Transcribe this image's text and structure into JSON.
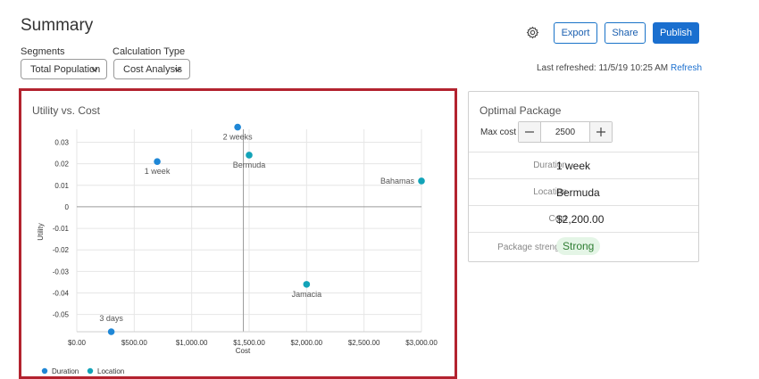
{
  "page": {
    "title": "Summary"
  },
  "filters": {
    "segments": {
      "label": "Segments",
      "value": "Total Population"
    },
    "calculation": {
      "label": "Calculation Type",
      "value": "Cost Analysis"
    }
  },
  "toolbar": {
    "settings_icon": "gear-icon",
    "export_label": "Export",
    "share_label": "Share",
    "publish_label": "Publish",
    "accent_color": "#1a6fcf"
  },
  "refresh": {
    "text": "Last refreshed: 11/5/19 10:25 AM",
    "link": "Refresh"
  },
  "chart_data": {
    "type": "scatter",
    "title": "Utility vs. Cost",
    "xlabel": "Cost",
    "ylabel": "Utility",
    "xlim": [
      0,
      3000
    ],
    "ylim": [
      -0.058,
      0.036
    ],
    "grid": true,
    "legend_position": "bottom-left",
    "x_ticks": [
      0,
      500,
      1000,
      1500,
      2000,
      2500,
      3000
    ],
    "x_tick_labels": [
      "$0.00",
      "$500.00",
      "$1,000.00",
      "$1,500.00",
      "$2,000.00",
      "$2,500.00",
      "$3,000.00"
    ],
    "y_ticks": [
      0.03,
      0.02,
      0.01,
      0,
      -0.01,
      -0.02,
      -0.03,
      -0.04,
      -0.05
    ],
    "y_tick_labels": [
      "0.03",
      "0.02",
      "0.01",
      "0",
      "-0.01",
      "-0.02",
      "-0.03",
      "-0.04",
      "-0.05"
    ],
    "reference_x": 1450,
    "series": [
      {
        "name": "Duration",
        "color": "#1f87d6",
        "points": [
          {
            "x": 700,
            "y": 0.021,
            "label": "1 week"
          },
          {
            "x": 1400,
            "y": 0.037,
            "label": "2 weeks"
          },
          {
            "x": 300,
            "y": -0.058,
            "label": "3 days"
          }
        ]
      },
      {
        "name": "Location",
        "color": "#12a3b8",
        "points": [
          {
            "x": 1500,
            "y": 0.024,
            "label": "Bermuda"
          },
          {
            "x": 3000,
            "y": 0.012,
            "label": "Bahamas"
          },
          {
            "x": 2000,
            "y": -0.036,
            "label": "Jamacia"
          }
        ]
      }
    ]
  },
  "optimal": {
    "title": "Optimal Package",
    "max_cost_label": "Max cost",
    "max_cost_value": "2500",
    "rows": [
      {
        "key": "Duration",
        "value": "1 week"
      },
      {
        "key": "Location",
        "value": "Bermuda"
      },
      {
        "key": "Cost",
        "value": "$2,200.00"
      }
    ],
    "strength": {
      "key": "Package strength",
      "value": "Strong"
    }
  }
}
